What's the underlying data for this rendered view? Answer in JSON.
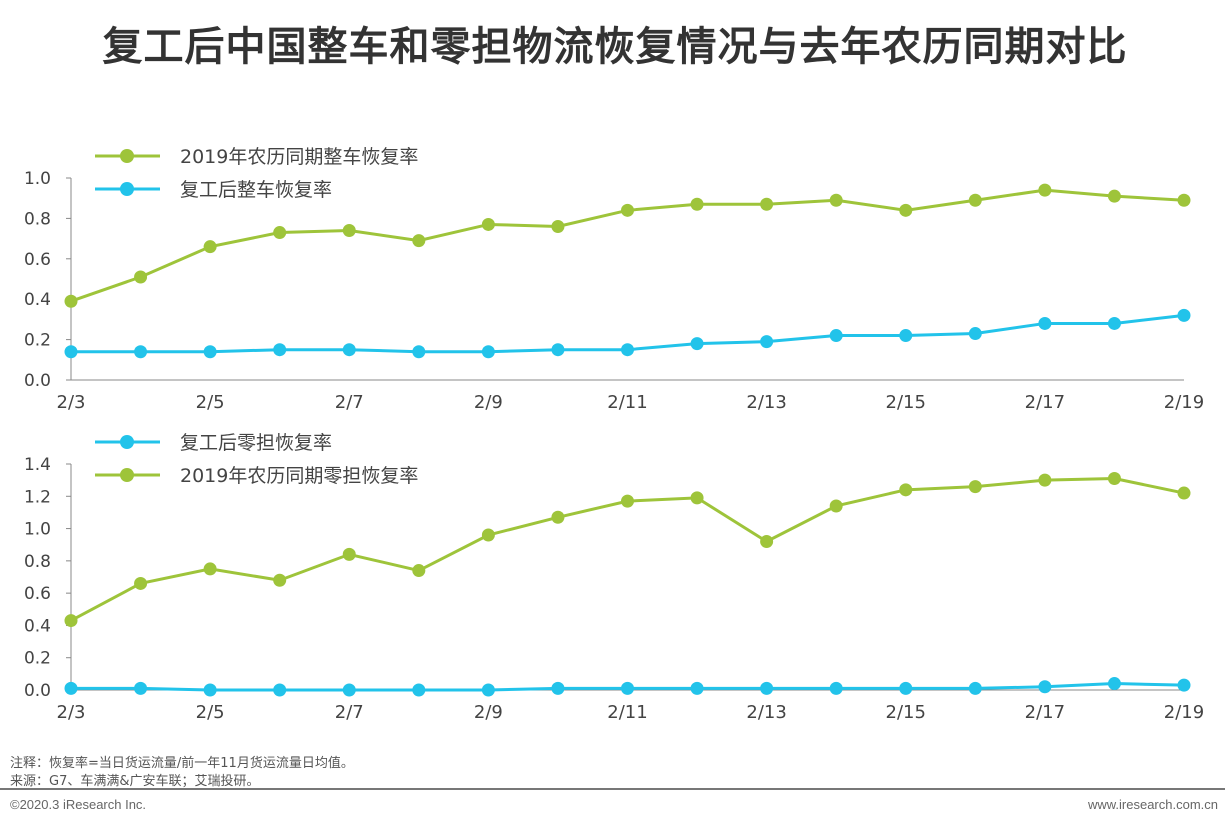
{
  "title": "复工后中国整车和零担物流恢复情况与去年农历同期对比",
  "colors": {
    "green": "#9ec43a",
    "blue": "#22c3ea",
    "axis": "#888888",
    "text": "#444444"
  },
  "chart_data": [
    {
      "type": "line",
      "categories": [
        "2/3",
        "2/4",
        "2/5",
        "2/6",
        "2/7",
        "2/8",
        "2/9",
        "2/10",
        "2/11",
        "2/12",
        "2/13",
        "2/14",
        "2/15",
        "2/16",
        "2/17",
        "2/18",
        "2/19"
      ],
      "tick_labels": [
        "2/3",
        "2/5",
        "2/7",
        "2/9",
        "2/11",
        "2/13",
        "2/15",
        "2/17",
        "2/19"
      ],
      "ylim": [
        0,
        1.0
      ],
      "yticks": [
        "0.0",
        "0.2",
        "0.4",
        "0.6",
        "0.8",
        "1.0"
      ],
      "legend": "top-left",
      "grid": false,
      "series": [
        {
          "name": "2019年农历同期整车恢复率",
          "color": "green",
          "values": [
            0.39,
            0.51,
            0.66,
            0.73,
            0.74,
            0.69,
            0.77,
            0.76,
            0.84,
            0.87,
            0.87,
            0.89,
            0.84,
            0.89,
            0.94,
            0.91,
            0.89
          ]
        },
        {
          "name": "复工后整车恢复率",
          "color": "blue",
          "values": [
            0.14,
            0.14,
            0.14,
            0.15,
            0.15,
            0.14,
            0.14,
            0.15,
            0.15,
            0.18,
            0.19,
            0.22,
            0.22,
            0.23,
            0.28,
            0.28,
            0.32
          ]
        }
      ]
    },
    {
      "type": "line",
      "categories": [
        "2/3",
        "2/4",
        "2/5",
        "2/6",
        "2/7",
        "2/8",
        "2/9",
        "2/10",
        "2/11",
        "2/12",
        "2/13",
        "2/14",
        "2/15",
        "2/16",
        "2/17",
        "2/18",
        "2/19"
      ],
      "tick_labels": [
        "2/3",
        "2/5",
        "2/7",
        "2/9",
        "2/11",
        "2/13",
        "2/15",
        "2/17",
        "2/19"
      ],
      "ylim": [
        0,
        1.4
      ],
      "yticks": [
        "0.0",
        "0.2",
        "0.4",
        "0.6",
        "0.8",
        "1.0",
        "1.2",
        "1.4"
      ],
      "legend": "top-left",
      "grid": false,
      "series": [
        {
          "name": "复工后零担恢复率",
          "color": "blue",
          "values": [
            0.01,
            0.01,
            0.0,
            0.0,
            0.0,
            0.0,
            0.0,
            0.01,
            0.01,
            0.01,
            0.01,
            0.01,
            0.01,
            0.01,
            0.02,
            0.04,
            0.03
          ]
        },
        {
          "name": "2019年农历同期零担恢复率",
          "color": "green",
          "values": [
            0.43,
            0.66,
            0.75,
            0.68,
            0.84,
            0.74,
            0.96,
            1.07,
            1.17,
            1.19,
            0.92,
            1.14,
            1.24,
            1.26,
            1.3,
            1.31,
            1.22
          ]
        }
      ]
    }
  ],
  "footer": {
    "note": "注释：恢复率=当日货运流量/前一年11月货运流量日均值。",
    "source": "来源：G7、车满满&广安车联；艾瑞投研。",
    "copyright": "©2020.3 iResearch Inc.",
    "website": "www.iresearch.com.cn"
  }
}
